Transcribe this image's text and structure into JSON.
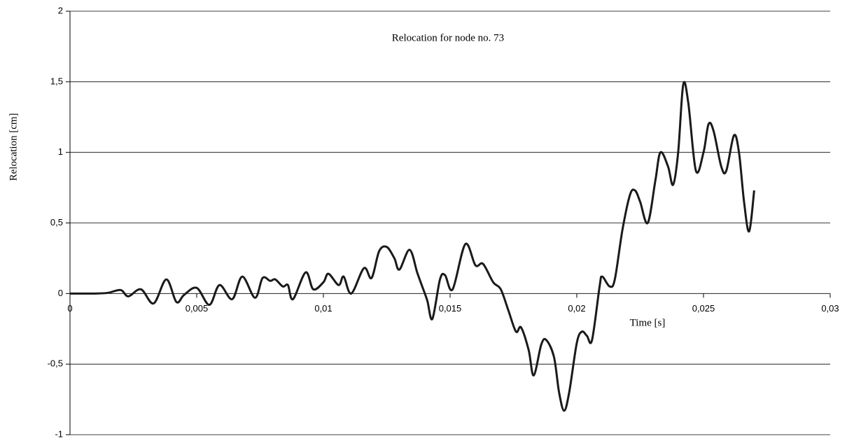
{
  "chart_data": {
    "type": "line",
    "title": "Relocation for node no. 73",
    "x_label": "Time [s]",
    "y_label": "Relocation [cm]",
    "grid": true,
    "xlim": [
      0,
      0.03
    ],
    "ylim": [
      -1,
      2
    ],
    "xticks": [
      0,
      {
        "value": 0.005,
        "label": "0,005"
      },
      {
        "value": 0.01,
        "label": "0,01"
      },
      {
        "value": 0.015,
        "label": "0,015"
      },
      {
        "value": 0.02,
        "label": "0,02"
      },
      {
        "value": 0.025,
        "label": "0,025"
      },
      {
        "value": 0.03,
        "label": "0,03"
      }
    ],
    "yticks": [
      -1,
      {
        "value": -0.5,
        "label": "-0,5"
      },
      0,
      {
        "value": 0.5,
        "label": "0,5"
      },
      1,
      {
        "value": 1.5,
        "label": "1,5"
      },
      2
    ],
    "x": [
      0,
      0.0005,
      0.001,
      0.0015,
      0.002,
      0.0023,
      0.0028,
      0.0033,
      0.0038,
      0.0042,
      0.0045,
      0.005,
      0.0055,
      0.0059,
      0.0064,
      0.0068,
      0.0073,
      0.0076,
      0.0079,
      0.0081,
      0.0084,
      0.0086,
      0.0088,
      0.0093,
      0.0096,
      0.01,
      0.0102,
      0.0106,
      0.0108,
      0.0111,
      0.0116,
      0.0119,
      0.0122,
      0.0125,
      0.0128,
      0.013,
      0.0134,
      0.0137,
      0.0139,
      0.0141,
      0.0143,
      0.0146,
      0.0148,
      0.0151,
      0.0156,
      0.016,
      0.0163,
      0.0167,
      0.017,
      0.0173,
      0.0176,
      0.0178,
      0.0181,
      0.0183,
      0.0186,
      0.0188,
      0.0191,
      0.0193,
      0.0195,
      0.0197,
      0.02,
      0.0202,
      0.0204,
      0.0206,
      0.0209,
      0.021,
      0.0213,
      0.0215,
      0.0218,
      0.0221,
      0.0223,
      0.0225,
      0.0228,
      0.0231,
      0.0233,
      0.0236,
      0.0238,
      0.024,
      0.0242,
      0.0244,
      0.0247,
      0.025,
      0.0252,
      0.0254,
      0.0257,
      0.0259,
      0.0262,
      0.0264,
      0.0266,
      0.0268,
      0.027
    ],
    "series": [
      {
        "color": "#1a1a1a",
        "values": [
          0,
          0,
          0,
          0.005,
          0.025,
          -0.02,
          0.03,
          -0.07,
          0.1,
          -0.06,
          -0.01,
          0.04,
          -0.08,
          0.06,
          -0.04,
          0.12,
          -0.03,
          0.11,
          0.09,
          0.1,
          0.05,
          0.06,
          -0.04,
          0.15,
          0.03,
          0.08,
          0.14,
          0.06,
          0.12,
          0,
          0.18,
          0.11,
          0.3,
          0.33,
          0.25,
          0.17,
          0.31,
          0.15,
          0.05,
          -0.05,
          -0.18,
          0.1,
          0.13,
          0.03,
          0.35,
          0.2,
          0.21,
          0.08,
          0.03,
          -0.12,
          -0.27,
          -0.24,
          -0.4,
          -0.58,
          -0.36,
          -0.33,
          -0.45,
          -0.7,
          -0.83,
          -0.7,
          -0.35,
          -0.27,
          -0.3,
          -0.33,
          0.05,
          0.12,
          0.05,
          0.1,
          0.45,
          0.7,
          0.73,
          0.65,
          0.5,
          0.8,
          1.0,
          0.9,
          0.77,
          1.0,
          1.48,
          1.35,
          0.87,
          1.0,
          1.2,
          1.15,
          0.9,
          0.87,
          1.12,
          1.0,
          0.65,
          0.44,
          0.73
        ]
      }
    ]
  }
}
